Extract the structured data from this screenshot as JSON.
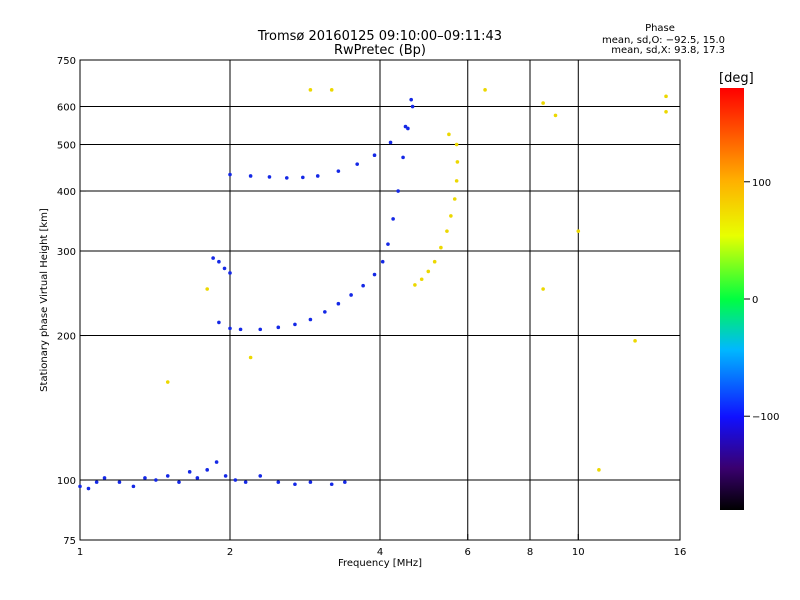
{
  "chart_data": {
    "type": "scatter",
    "title": "Tromsø 20160125 09:10:00–09:11:43",
    "subtitle": "RwPretec (Bp)",
    "xlabel": "Frequency [MHz]",
    "ylabel": "Stationary phase Virtual Height [km]",
    "x_scale": "log",
    "y_scale": "log",
    "xlim": [
      1,
      16
    ],
    "ylim": [
      75,
      750
    ],
    "x_ticks": [
      1,
      2,
      4,
      6,
      8,
      10,
      16
    ],
    "x_ticklabels": [
      "1",
      "2",
      "4",
      "6",
      "8",
      "10",
      "16"
    ],
    "x_gridlines": [
      2,
      4,
      6,
      8,
      10
    ],
    "y_ticks": [
      75,
      100,
      200,
      300,
      400,
      500,
      600,
      750
    ],
    "y_ticklabels": [
      "75",
      "100",
      "200",
      "300",
      "400",
      "500",
      "600",
      "750"
    ],
    "y_gridlines": [
      100,
      200,
      300,
      400,
      500,
      600
    ],
    "grid": true,
    "phase_stats": {
      "heading": "Phase",
      "line_o": "mean, sd,O: −92.5, 15.0",
      "line_x": "mean, sd,X:  93.8, 17.3"
    },
    "colorbar": {
      "label": "[deg]",
      "range": [
        -180,
        180
      ],
      "ticks": [
        100,
        0,
        -100
      ],
      "ticklabels": [
        "100",
        "0",
        "−100"
      ]
    },
    "series": [
      {
        "trace": "low_E",
        "phase": -100,
        "points": [
          [
            1.0,
            97
          ],
          [
            1.04,
            96
          ],
          [
            1.08,
            99
          ],
          [
            1.12,
            101
          ],
          [
            1.2,
            99
          ],
          [
            1.28,
            97
          ],
          [
            1.35,
            101
          ],
          [
            1.42,
            100
          ],
          [
            1.5,
            102
          ],
          [
            1.58,
            99
          ],
          [
            1.66,
            104
          ],
          [
            1.72,
            101
          ],
          [
            1.8,
            105
          ],
          [
            1.88,
            109
          ],
          [
            1.96,
            102
          ],
          [
            2.05,
            100
          ],
          [
            2.15,
            99
          ],
          [
            2.3,
            102
          ],
          [
            2.5,
            99
          ],
          [
            2.7,
            98
          ],
          [
            2.9,
            99
          ],
          [
            3.2,
            98
          ],
          [
            3.4,
            99
          ]
        ]
      },
      {
        "trace": "F_lower_O",
        "phase": -100,
        "points": [
          [
            1.85,
            290
          ],
          [
            1.9,
            285
          ],
          [
            1.95,
            276
          ],
          [
            2.0,
            270
          ],
          [
            1.9,
            213
          ],
          [
            2.0,
            207
          ],
          [
            2.1,
            206
          ],
          [
            2.3,
            206
          ],
          [
            2.5,
            208
          ],
          [
            2.7,
            211
          ],
          [
            2.9,
            216
          ],
          [
            3.1,
            224
          ],
          [
            3.3,
            233
          ],
          [
            3.5,
            243
          ],
          [
            3.7,
            254
          ],
          [
            3.9,
            268
          ],
          [
            4.05,
            285
          ],
          [
            4.15,
            310
          ],
          [
            4.25,
            350
          ],
          [
            4.35,
            400
          ],
          [
            4.45,
            470
          ],
          [
            4.55,
            540
          ],
          [
            4.62,
            620
          ]
        ]
      },
      {
        "trace": "F_upper_O",
        "phase": -100,
        "points": [
          [
            2.0,
            433
          ],
          [
            2.2,
            430
          ],
          [
            2.4,
            428
          ],
          [
            2.6,
            426
          ],
          [
            2.8,
            427
          ],
          [
            3.0,
            430
          ],
          [
            3.3,
            440
          ],
          [
            3.6,
            455
          ],
          [
            3.9,
            475
          ],
          [
            4.2,
            505
          ],
          [
            4.5,
            545
          ],
          [
            4.65,
            600
          ]
        ]
      },
      {
        "trace": "F_trace_X",
        "phase": 100,
        "points": [
          [
            4.7,
            255
          ],
          [
            4.85,
            262
          ],
          [
            5.0,
            272
          ],
          [
            5.15,
            285
          ],
          [
            5.3,
            305
          ],
          [
            5.45,
            330
          ],
          [
            5.55,
            355
          ],
          [
            5.65,
            385
          ],
          [
            5.7,
            420
          ],
          [
            5.72,
            460
          ],
          [
            5.7,
            500
          ],
          [
            5.5,
            525
          ]
        ]
      },
      {
        "trace": "sparse",
        "phase": 100,
        "points": [
          [
            2.2,
            180
          ],
          [
            2.9,
            650
          ],
          [
            3.2,
            650
          ],
          [
            6.5,
            650
          ],
          [
            8.5,
            610
          ],
          [
            9.0,
            575
          ],
          [
            15.0,
            630
          ],
          [
            15.0,
            585
          ],
          [
            8.5,
            250
          ],
          [
            10.0,
            330
          ],
          [
            11.0,
            105
          ],
          [
            13.0,
            195
          ],
          [
            1.8,
            250
          ],
          [
            1.5,
            160
          ]
        ]
      }
    ]
  }
}
